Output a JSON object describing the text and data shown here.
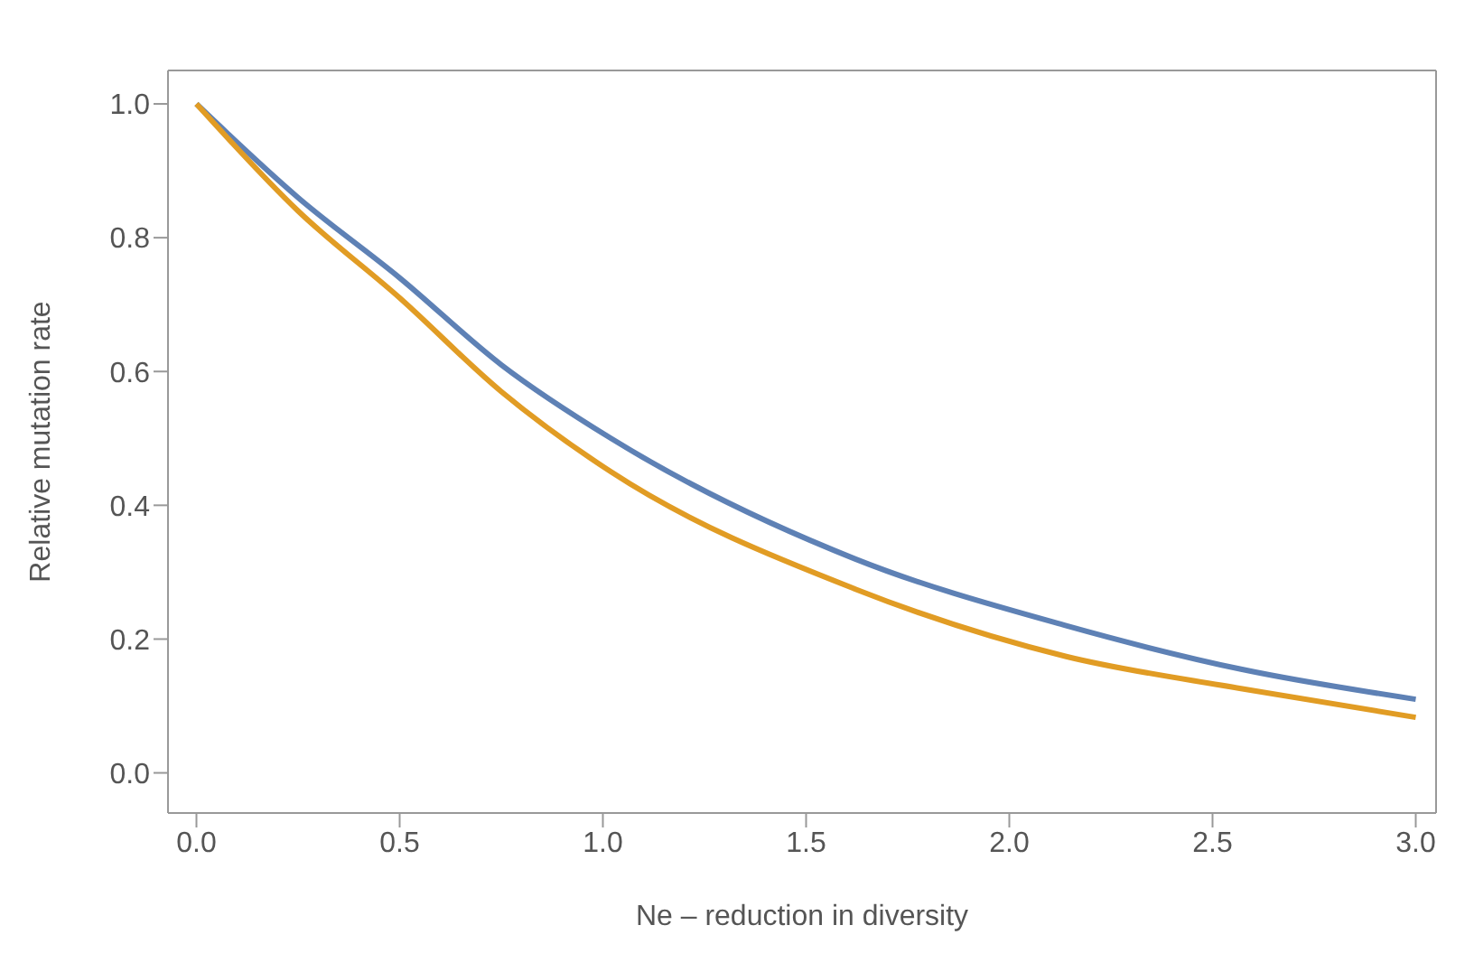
{
  "chart_data": {
    "type": "line",
    "xlabel": "Ne – reduction in diversity",
    "ylabel": "Relative mutation rate",
    "xlim": [
      -0.07,
      3.05
    ],
    "ylim": [
      -0.06,
      1.05
    ],
    "xticks": [
      {
        "value": 0,
        "label": "0.0"
      },
      0.5,
      {
        "value": 1,
        "label": "1.0"
      },
      1.5,
      {
        "value": 2,
        "label": "2.0"
      },
      2.5,
      {
        "value": 3,
        "label": "3.0"
      }
    ],
    "yticks": [
      {
        "value": 0,
        "label": "0.0"
      },
      0.2,
      0.4,
      0.6,
      0.8,
      {
        "value": 1,
        "label": "1.0"
      }
    ],
    "marker": "none",
    "line_style": "solid",
    "series": [
      {
        "color": "#5e81b5",
        "x": [
          0,
          0.25,
          0.5,
          0.75,
          1.02,
          1.62,
          2.14,
          2.57,
          3
        ],
        "values": [
          1,
          0.86,
          0.74,
          0.61,
          0.5,
          0.32,
          0.22,
          0.155,
          0.11
        ]
      },
      {
        "color": "#e19c24",
        "x": [
          0,
          0.25,
          0.5,
          0.75,
          1.02,
          1.62,
          2.14,
          2.57,
          3
        ],
        "values": [
          1,
          0.84,
          0.71,
          0.57,
          0.45,
          0.275,
          0.174,
          0.126,
          0.083
        ]
      }
    ]
  }
}
